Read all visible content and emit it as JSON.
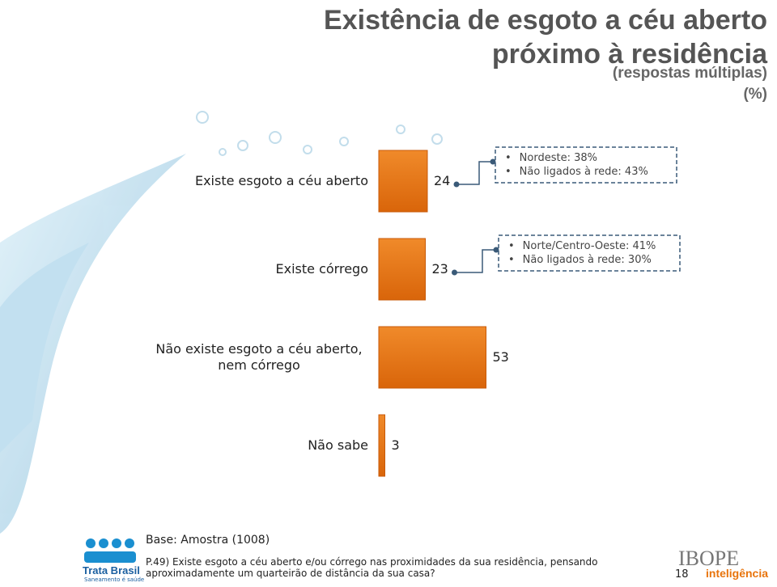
{
  "chart_data": {
    "type": "bar",
    "orientation": "horizontal",
    "title": [
      "Existência de esgoto a céu aberto",
      "próximo à residência"
    ],
    "subtitle": "(respostas múltiplas)",
    "unit": "(%)",
    "categories": [
      "Existe esgoto a céu aberto",
      "Existe córrego",
      "Não existe esgoto a céu aberto, nem córrego",
      "Não sabe"
    ],
    "values": [
      24,
      23,
      53,
      3
    ],
    "color": "#e8740c",
    "annotations": [
      [
        "Nordeste: 38%",
        "Não ligados à rede: 43%"
      ],
      [
        "Norte/Centro-Oeste: 41%",
        "Não ligados à rede: 30%"
      ],
      null,
      null
    ],
    "base": "Base: Amostra (1008)",
    "question": "P.49) Existe esgoto a céu aberto e/ou córrego nas proximidades da sua residência, pensando aproximadamente um quarteirão de distância da sua casa?",
    "page_number": "18",
    "logos": {
      "left": [
        "Trata Brasil",
        "Saneamento é saúde"
      ],
      "right": [
        "IBOPE",
        "inteligência"
      ]
    }
  }
}
